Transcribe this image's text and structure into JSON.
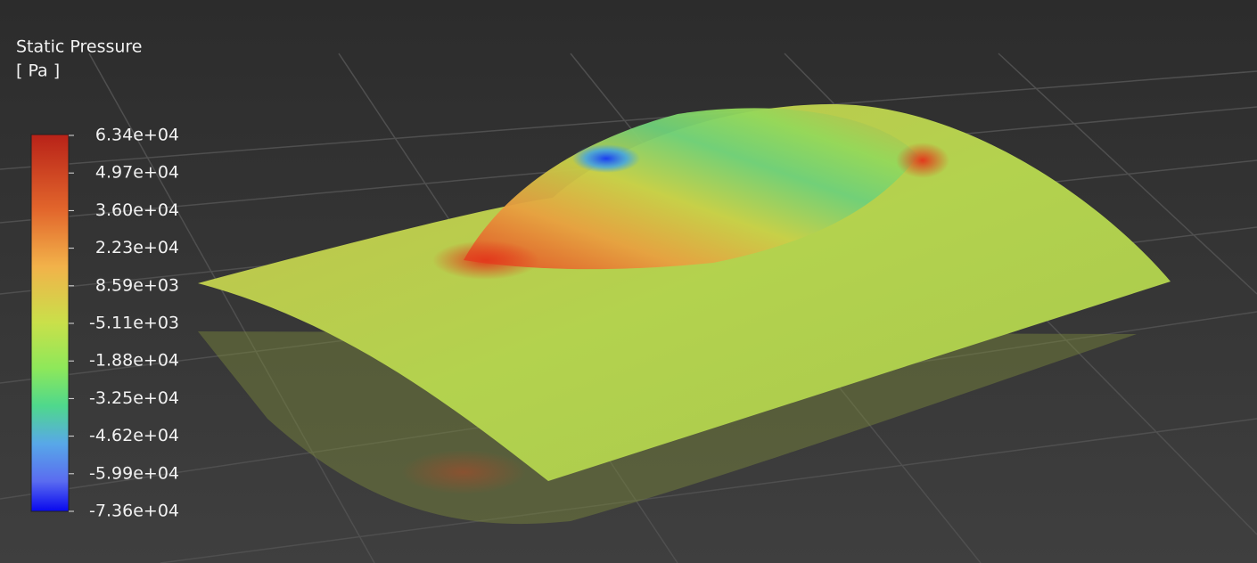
{
  "legend": {
    "title": "Static Pressure",
    "unit": "[ Pa ]",
    "labels": [
      "6.34e+04",
      "4.97e+04",
      "3.60e+04",
      "2.23e+04",
      "8.59e+03",
      "-5.11e+03",
      "-1.88e+04",
      "-3.25e+04",
      "-4.62e+04",
      "-5.99e+04",
      "-7.36e+04"
    ]
  }
}
